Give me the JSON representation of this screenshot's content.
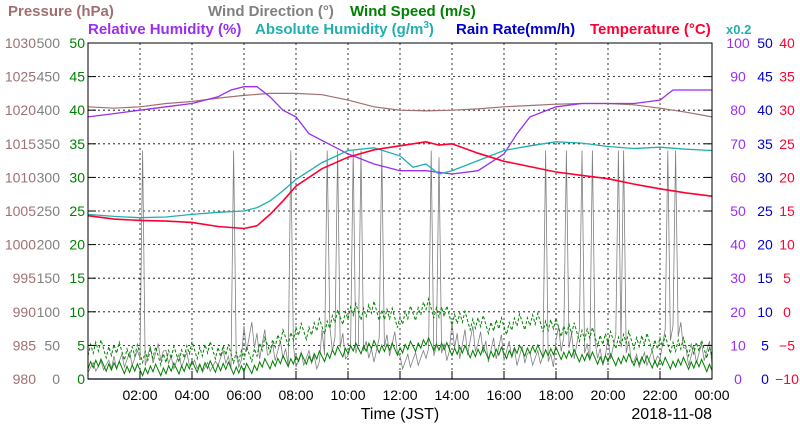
{
  "chart_data": {
    "type": "line",
    "xlabel": "Time (JST)",
    "date_label": "2018-11-08",
    "x_ticks": [
      "02:00",
      "04:00",
      "06:00",
      "08:00",
      "10:00",
      "12:00",
      "14:00",
      "16:00",
      "18:00",
      "20:00",
      "22:00",
      "00:00"
    ],
    "x_range_hours": [
      0,
      24
    ],
    "grid": true,
    "legend_row1": [
      {
        "name": "Pressure (hPa)",
        "color": "#a07070"
      },
      {
        "name": "Wind Direction (°)",
        "color": "#808080"
      },
      {
        "name": "Wind Speed (m/s)",
        "color": "#008000"
      }
    ],
    "legend_row2": [
      {
        "name": "Relative Humidity (%)",
        "color": "#9a2ff0"
      },
      {
        "name": "Absolute Humidity (g/m",
        "sup": "3",
        "tail": ")",
        "color": "#20b0b0"
      },
      {
        "name": "Rain Rate(mm/h)",
        "color": "#0000cc"
      },
      {
        "name": "Temperature (°C)",
        "color": "#ff0033"
      },
      {
        "name": "x0.2",
        "color": "#20b0b0"
      }
    ],
    "axes": {
      "pressure": {
        "color": "#a07070",
        "ticks": [
          "1030",
          "1025",
          "1020",
          "1015",
          "1010",
          "1005",
          "1000",
          "995",
          "990",
          "985",
          "980"
        ],
        "range": [
          980,
          1030
        ]
      },
      "wind_direction": {
        "color": "#808080",
        "ticks": [
          "500",
          "450",
          "400",
          "350",
          "300",
          "250",
          "200",
          "150",
          "100",
          "50",
          "0"
        ],
        "range": [
          0,
          500
        ]
      },
      "wind_speed": {
        "color": "#008000",
        "ticks": [
          "50",
          "45",
          "40",
          "35",
          "30",
          "25",
          "20",
          "15",
          "10",
          "5",
          "0"
        ],
        "range": [
          0,
          50
        ]
      },
      "relative_humidity": {
        "color": "#9a2ff0",
        "ticks": [
          "100",
          "90",
          "80",
          "70",
          "60",
          "50",
          "40",
          "30",
          "20",
          "10",
          "0"
        ],
        "range": [
          0,
          100
        ]
      },
      "rain_rate": {
        "color": "#0000cc",
        "ticks": [
          "50",
          "45",
          "40",
          "35",
          "30",
          "25",
          "20",
          "15",
          "10",
          "5",
          "0"
        ],
        "range": [
          0,
          50
        ]
      },
      "temperature": {
        "color": "#ff0033",
        "ticks": [
          "40",
          "35",
          "30",
          "25",
          "20",
          "15",
          "10",
          "5",
          "0",
          "−5",
          "−10"
        ],
        "range": [
          -10,
          40
        ]
      }
    },
    "series": [
      {
        "name": "Pressure (hPa)",
        "axis": "pressure",
        "color": "#a07070",
        "x": [
          0,
          1,
          2,
          3,
          4,
          5,
          6,
          7,
          8,
          9,
          10,
          11,
          12,
          13,
          14,
          15,
          16,
          17,
          18,
          19,
          20,
          21,
          22,
          23,
          24
        ],
        "values": [
          1020.5,
          1020.3,
          1020.5,
          1021,
          1021.3,
          1021.8,
          1022.2,
          1022.5,
          1022.5,
          1022.3,
          1021.5,
          1020.5,
          1020,
          1019.9,
          1020,
          1020.2,
          1020.5,
          1020.7,
          1020.9,
          1021,
          1021,
          1020.8,
          1020.3,
          1019.7,
          1019
        ]
      },
      {
        "name": "Temperature (°C)",
        "axis": "temperature",
        "color": "#ff0033",
        "x": [
          0,
          1,
          2,
          3,
          4,
          5,
          6,
          6.5,
          7,
          7.5,
          8,
          9,
          10,
          11,
          12,
          13,
          13.5,
          14,
          15,
          16,
          17,
          18,
          19,
          20,
          21,
          22,
          23,
          24
        ],
        "values": [
          14.3,
          13.8,
          13.6,
          13.5,
          13.3,
          12.7,
          12.4,
          12.8,
          14.5,
          16.5,
          18.7,
          21.3,
          23,
          24.1,
          24.7,
          25.3,
          24.8,
          25,
          23.6,
          22.4,
          21.6,
          20.8,
          20.3,
          19.8,
          19,
          18.3,
          17.7,
          17.2
        ]
      },
      {
        "name": "Absolute Humidity (g/m3)",
        "axis": "temperature",
        "color": "#20b0b0",
        "x": [
          0,
          1,
          2,
          3,
          4,
          5,
          6,
          6.5,
          7,
          7.5,
          8,
          9,
          10,
          11,
          12,
          12.5,
          13,
          13.5,
          14,
          15,
          16,
          17,
          18,
          19,
          20,
          21,
          22,
          23,
          24
        ],
        "values": [
          14.5,
          14.2,
          14,
          14.1,
          14.5,
          14.8,
          15,
          15.5,
          16.5,
          18,
          19.7,
          22.2,
          24,
          24.4,
          23.2,
          21.5,
          22,
          20.5,
          21,
          22.5,
          24,
          24.7,
          25.3,
          25.1,
          24.6,
          24.3,
          24.5,
          24.2,
          24
        ]
      },
      {
        "name": "Relative Humidity (%)",
        "axis": "relative_humidity",
        "color": "#9a2ff0",
        "x": [
          0,
          1,
          2,
          3,
          4,
          5,
          5.5,
          6,
          6.5,
          7,
          7.5,
          8,
          8.5,
          9,
          10,
          11,
          12,
          13,
          14,
          15,
          16,
          16.5,
          17,
          18,
          19,
          20,
          21,
          22,
          22.5,
          23,
          24
        ],
        "values": [
          78,
          79,
          80,
          81,
          82,
          84,
          86,
          87,
          87,
          84,
          80,
          78,
          73,
          71,
          67,
          64,
          62,
          62,
          61,
          62,
          67,
          73,
          78,
          81,
          82,
          82,
          82,
          83,
          86,
          86,
          86
        ]
      },
      {
        "name": "Wind Speed (m/s)",
        "axis": "wind_speed",
        "color": "#008000",
        "x": [
          0,
          1,
          2,
          3,
          4,
          5,
          6,
          7,
          8,
          9,
          10,
          11,
          12,
          13,
          14,
          15,
          16,
          17,
          18,
          19,
          20,
          21,
          22,
          23,
          24
        ],
        "values": [
          2.5,
          2,
          1.5,
          1.5,
          2,
          2,
          1.5,
          2.5,
          3,
          3.5,
          4.5,
          5,
          4.5,
          5.5,
          4.5,
          4,
          4,
          4.5,
          4,
          3.5,
          3,
          3,
          2.5,
          2.5,
          2
        ],
        "gust": [
          5,
          4.5,
          4,
          3.5,
          4.5,
          4.5,
          3.5,
          5.5,
          7,
          8,
          10,
          10.5,
          9,
          11,
          9.5,
          8.5,
          8,
          9,
          8,
          7,
          6,
          6,
          5.5,
          5,
          4.5
        ]
      },
      {
        "name": "Wind Direction (°)",
        "axis": "wind_direction",
        "color": "#808080",
        "base": [
          20,
          30,
          40,
          30,
          20,
          30,
          60,
          40,
          30,
          60,
          40,
          50,
          30,
          40,
          60,
          50,
          40,
          30,
          60,
          40,
          50,
          30,
          60,
          40,
          30
        ],
        "spikes_x": [
          2.1,
          5.6,
          7.8,
          9.2,
          9.6,
          10.2,
          10.5,
          11.3,
          13.2,
          13.5,
          17.6,
          18.4,
          19,
          19.4,
          20.4,
          20.6,
          22.3,
          22.6
        ],
        "spikes_y": [
          340,
          340,
          340,
          340,
          340,
          340,
          340,
          340,
          340,
          330,
          340,
          340,
          340,
          340,
          340,
          340,
          340,
          340
        ]
      },
      {
        "name": "Rain Rate(mm/h)",
        "axis": "rain_rate",
        "color": "#0000cc",
        "x": [
          0,
          24
        ],
        "values": [
          0,
          0
        ]
      }
    ]
  }
}
